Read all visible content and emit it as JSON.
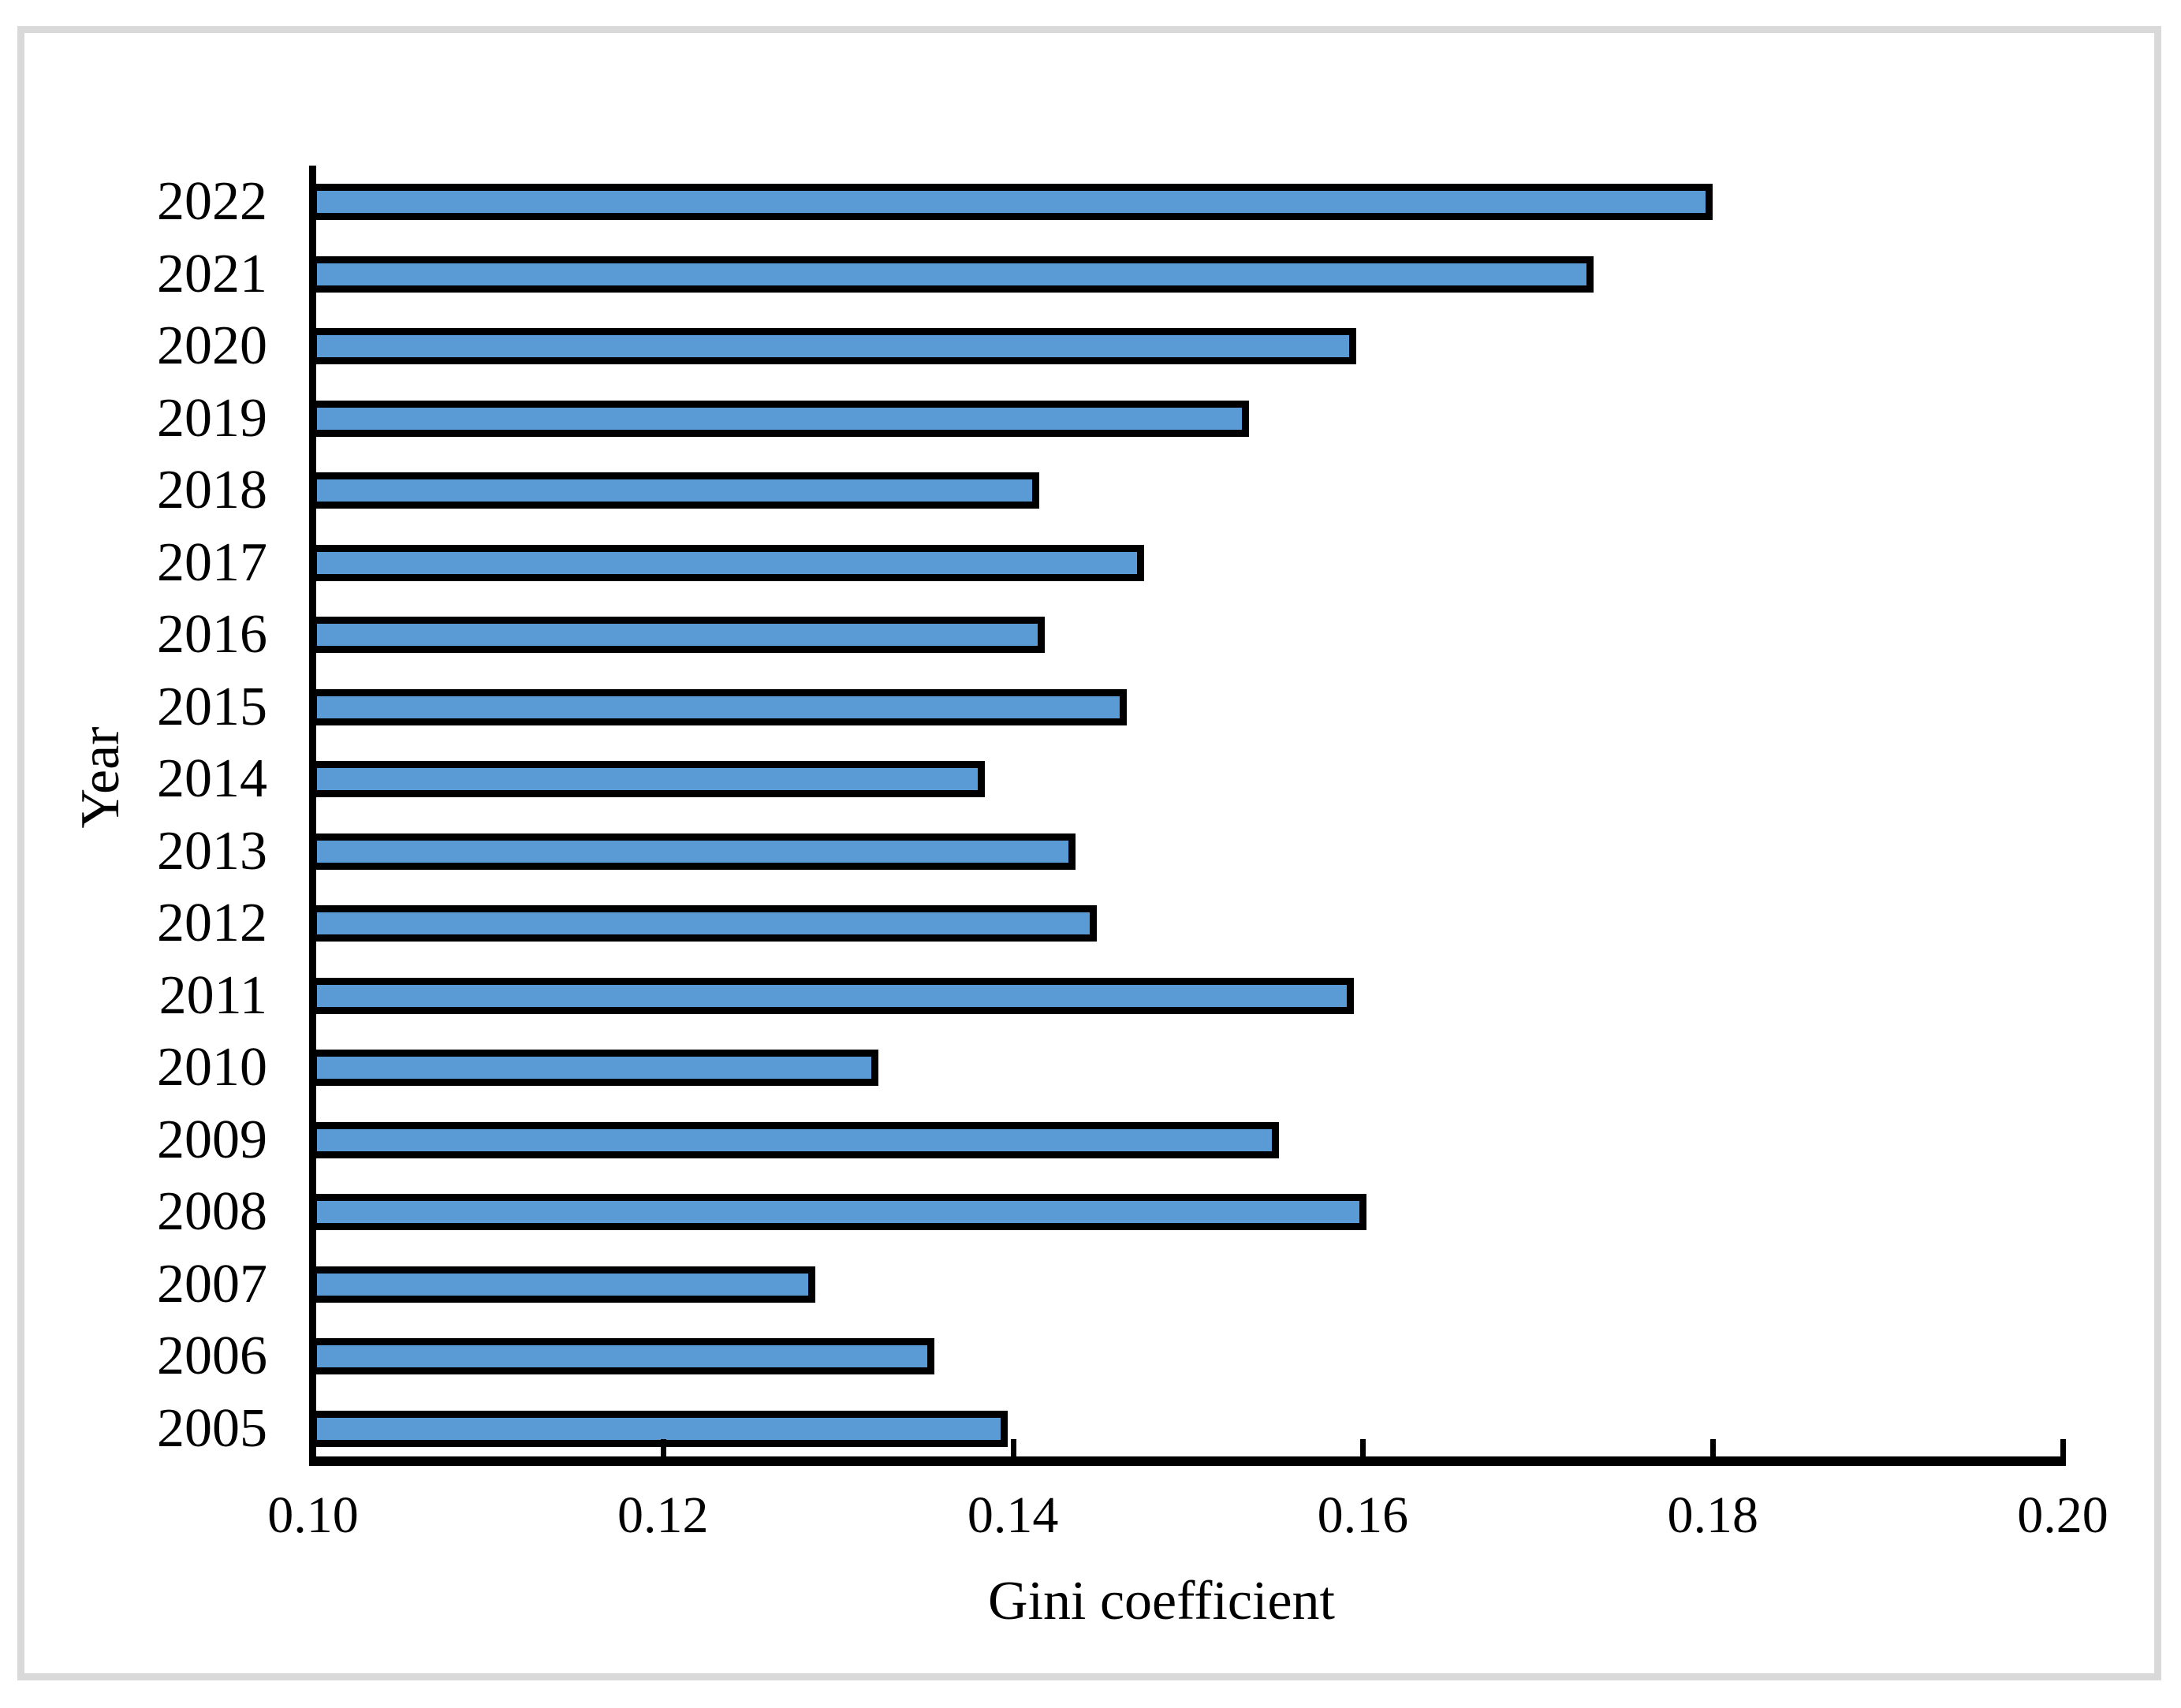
{
  "figure": {
    "background": "#ffffff",
    "frame_border_color": "#d9d9d9"
  },
  "chart_data": {
    "type": "bar",
    "orientation": "horizontal",
    "title": "",
    "xlabel": "Gini coefficient",
    "ylabel": "Year",
    "categories": [
      "2022",
      "2021",
      "2020",
      "2019",
      "2018",
      "2017",
      "2016",
      "2015",
      "2014",
      "2013",
      "2012",
      "2011",
      "2010",
      "2009",
      "2008",
      "2007",
      "2006",
      "2005"
    ],
    "values": [
      0.18,
      0.1732,
      0.1596,
      0.1535,
      0.1415,
      0.1475,
      0.1418,
      0.1465,
      0.1384,
      0.1436,
      0.1448,
      0.1595,
      0.1323,
      0.1552,
      0.1602,
      0.1287,
      0.1355,
      0.1397
    ],
    "xlim": [
      0.1,
      0.2
    ],
    "xticks": [
      "0.10",
      "0.12",
      "0.14",
      "0.16",
      "0.18",
      "0.20"
    ],
    "xtick_values": [
      0.1,
      0.12,
      0.14,
      0.16,
      0.18,
      0.2
    ],
    "grid": false,
    "legend": "none",
    "bar_fill": "#5B9BD5",
    "bar_border": "#000000",
    "axis_color": "#000000"
  }
}
